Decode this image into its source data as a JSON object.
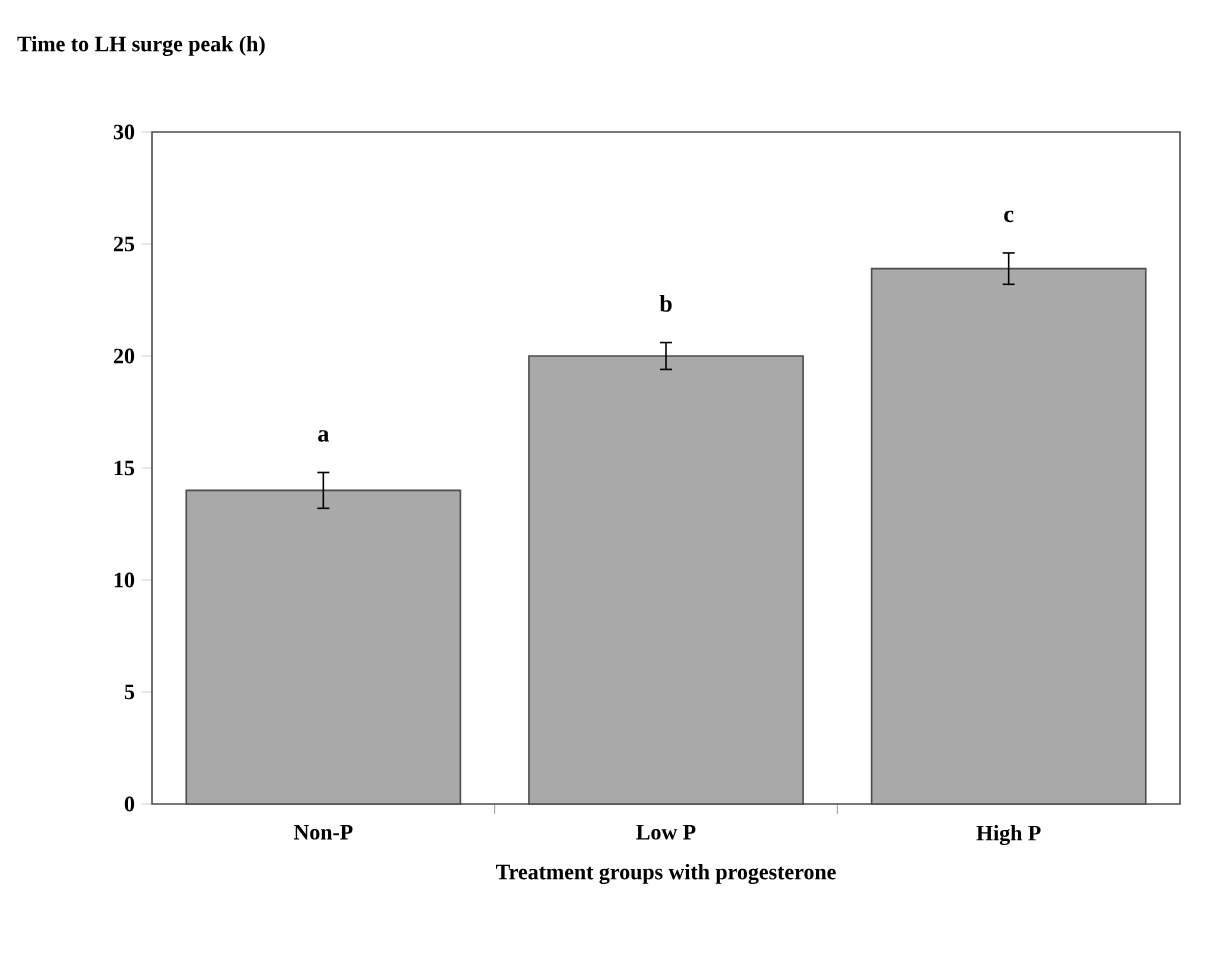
{
  "chart_data": {
    "type": "bar",
    "ylabel": "Time to LH surge peak (h)",
    "xlabel": "Treatment groups with progesterone",
    "categories": [
      "Non-P",
      "Low P",
      "High P"
    ],
    "values": [
      14,
      20,
      23.9
    ],
    "errors": [
      0.8,
      0.6,
      0.7
    ],
    "color": "#a9a9a9",
    "ylim": [
      0,
      30
    ],
    "yticks": [
      0,
      5,
      10,
      15,
      20,
      25,
      30
    ],
    "grid": false,
    "annotations": [
      "a",
      "b",
      "c"
    ]
  }
}
